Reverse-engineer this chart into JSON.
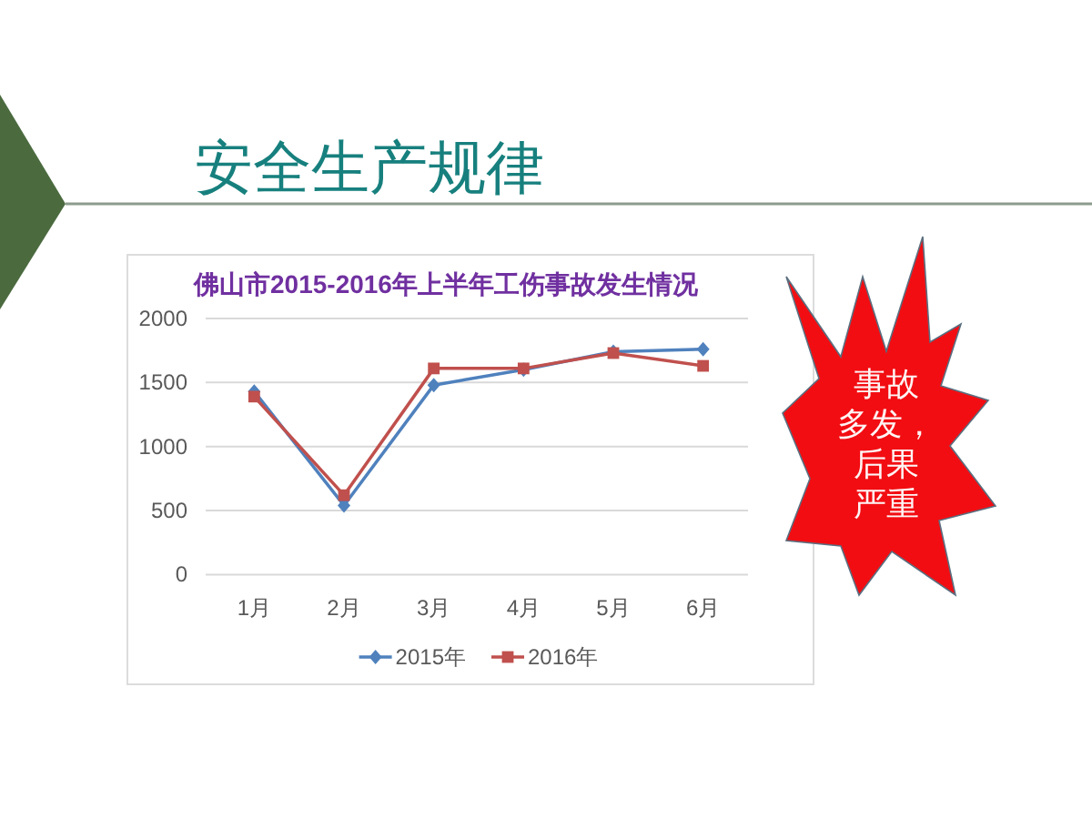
{
  "chart_data": {
    "type": "line",
    "title": "安全生产规律",
    "subtitle": "佛山市2015-2016年上半年工伤事故发生情况",
    "categories": [
      "1月",
      "2月",
      "3月",
      "4月",
      "5月",
      "6月"
    ],
    "series": [
      {
        "name": "2015年",
        "color": "#4f81bd",
        "marker": "diamond",
        "values": [
          1430,
          540,
          1480,
          1600,
          1740,
          1760
        ]
      },
      {
        "name": "2016年",
        "color": "#c0504d",
        "marker": "square",
        "values": [
          1390,
          620,
          1610,
          1610,
          1730,
          1630
        ]
      }
    ],
    "ylim": [
      0,
      2000
    ],
    "yticks": [
      0,
      500,
      1000,
      1500,
      2000
    ],
    "grid": "y",
    "legend": "bottom",
    "annotations": [
      "事故多发，后果严重"
    ]
  }
}
